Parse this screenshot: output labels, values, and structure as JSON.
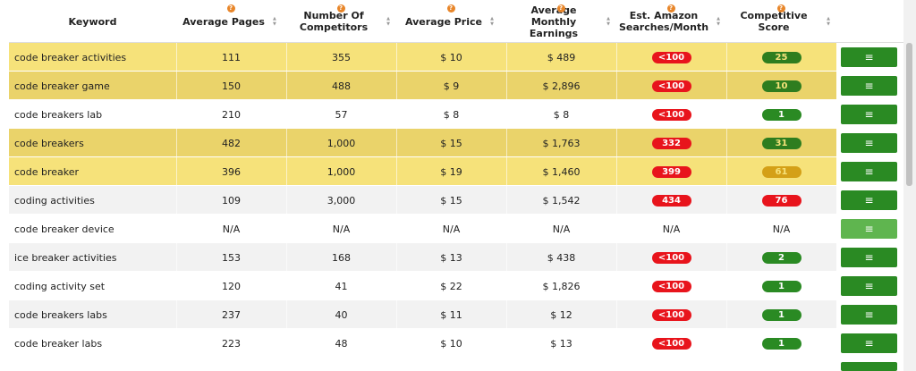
{
  "table": {
    "columns": [
      "Keyword",
      "Average Pages",
      "Number Of Competitors",
      "Average Price",
      "Average Monthly Earnings",
      "Est. Amazon Searches/Month",
      "Competitive Score"
    ],
    "rows": [
      [
        "code breaker activities",
        "111",
        "355",
        "$ 10",
        "$ 489",
        "<100",
        "25"
      ],
      [
        "code breaker game",
        "150",
        "488",
        "$ 9",
        "$ 2,896",
        "<100",
        "10"
      ],
      [
        "code breakers lab",
        "210",
        "57",
        "$ 8",
        "$ 8",
        "<100",
        "1"
      ],
      [
        "code breakers",
        "482",
        "1,000",
        "$ 15",
        "$ 1,763",
        "332",
        "31"
      ],
      [
        "code breaker",
        "396",
        "1,000",
        "$ 19",
        "$ 1,460",
        "399",
        "61"
      ],
      [
        "coding activities",
        "109",
        "3,000",
        "$ 15",
        "$ 1,542",
        "434",
        "76"
      ],
      [
        "code breaker device",
        "N/A",
        "N/A",
        "N/A",
        "N/A",
        "N/A",
        "N/A"
      ],
      [
        "ice breaker activities",
        "153",
        "168",
        "$ 13",
        "$ 438",
        "<100",
        "2"
      ],
      [
        "coding activity set",
        "120",
        "41",
        "$ 22",
        "$ 1,826",
        "<100",
        "1"
      ],
      [
        "code breakers labs",
        "237",
        "40",
        "$ 11",
        "$ 12",
        "<100",
        "1"
      ],
      [
        "code breaker labs",
        "223",
        "48",
        "$ 10",
        "$ 13",
        "<100",
        "1"
      ]
    ]
  }
}
